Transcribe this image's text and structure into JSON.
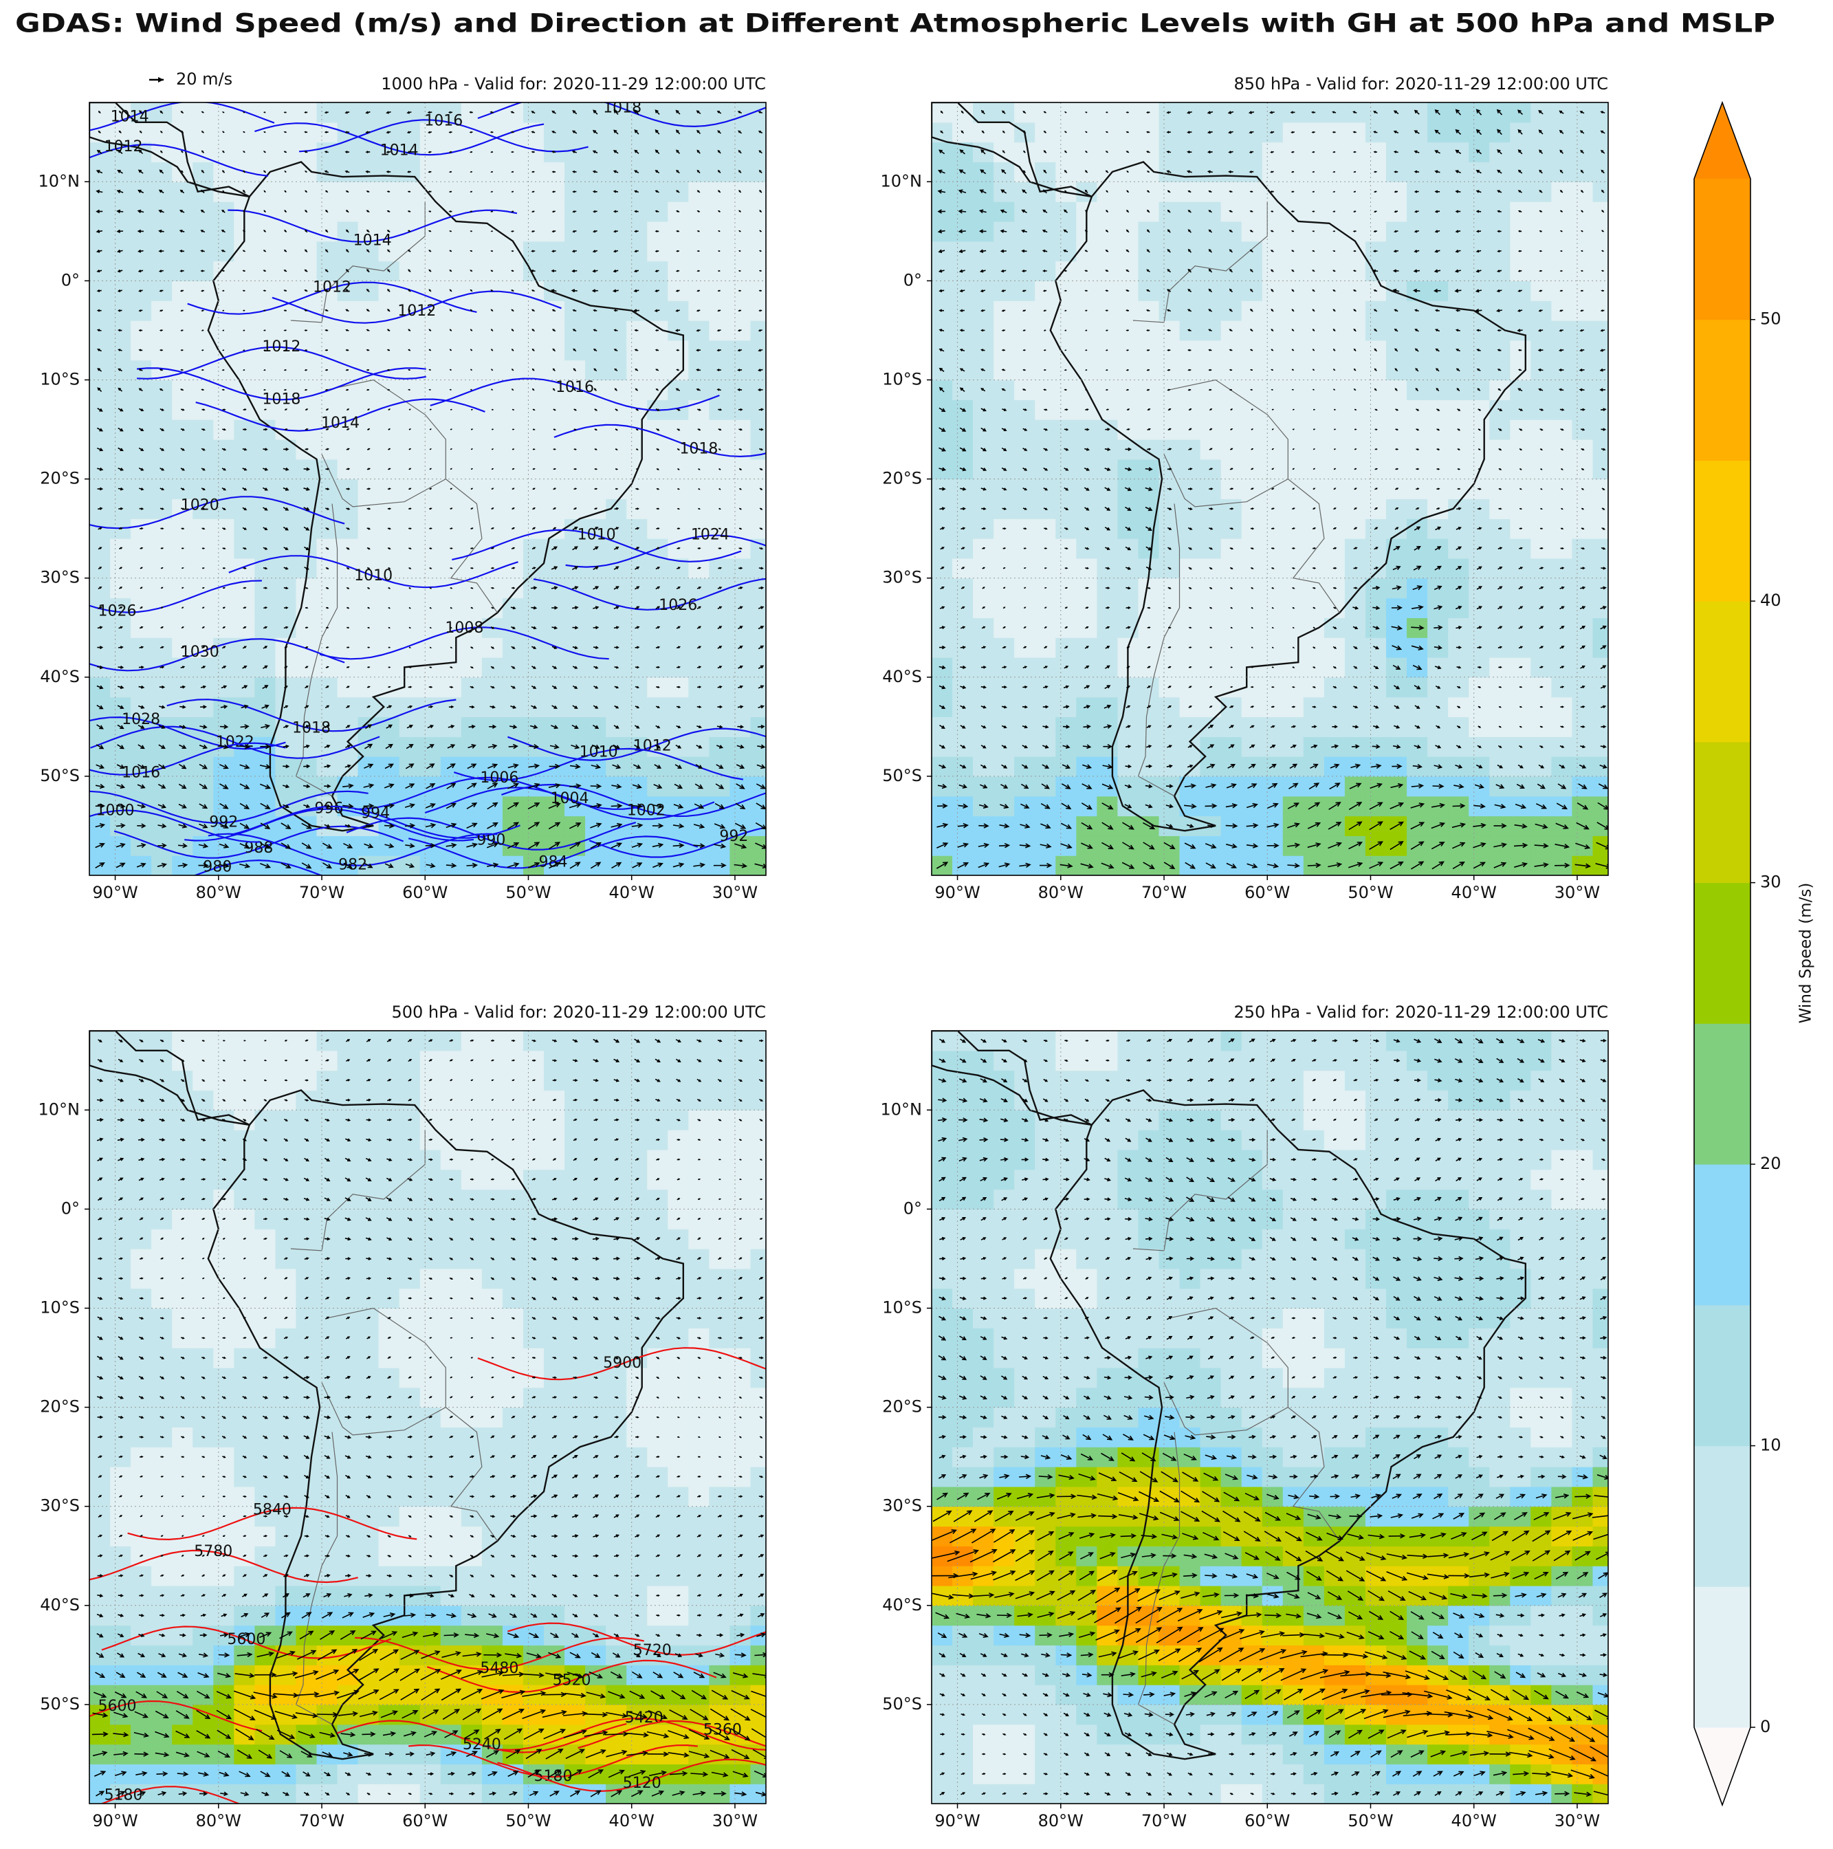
{
  "figure": {
    "title": "GDAS: Wind Speed (m/s) and Direction at Different Atmospheric Levels with GH at 500 hPa and MSLP",
    "quiver_key": "20 m/s",
    "colorbar": {
      "label": "Wind Speed (m/s)",
      "lim": [
        0,
        55
      ],
      "ticks": [
        0,
        10,
        20,
        30,
        40,
        50
      ],
      "levels": [
        0,
        5,
        10,
        15,
        20,
        25,
        30,
        35,
        40,
        45,
        50,
        55
      ],
      "colors": [
        "#e3f1f4",
        "#c5e6ec",
        "#acdee6",
        "#8dd8f8",
        "#7fcf7f",
        "#99cc00",
        "#c6cf00",
        "#e8d400",
        "#fcc800",
        "#ffb000",
        "#ff9a00"
      ],
      "extend_colors": [
        "#fcf8f8",
        "#ff8c00"
      ]
    }
  },
  "chart_data": [
    {
      "type": "map",
      "title": "1000 hPa - Valid for: 2020-11-29 12:00:00 UTC",
      "xlim": [
        -92.5,
        -27
      ],
      "ylim": [
        -60,
        18
      ],
      "xticks": [
        {
          "value": -90,
          "label": "90°W"
        },
        {
          "value": -80,
          "label": "80°W"
        },
        {
          "value": -70,
          "label": "70°W"
        },
        {
          "value": -60,
          "label": "60°W"
        },
        {
          "value": -50,
          "label": "50°W"
        },
        {
          "value": -40,
          "label": "40°W"
        },
        {
          "value": -30,
          "label": "30°W"
        }
      ],
      "yticks": [
        {
          "value": 10,
          "label": "10°N"
        },
        {
          "value": 0,
          "label": "0°"
        },
        {
          "value": -10,
          "label": "10°S"
        },
        {
          "value": -20,
          "label": "20°S"
        },
        {
          "value": -30,
          "label": "30°S"
        },
        {
          "value": -40,
          "label": "40°S"
        },
        {
          "value": -50,
          "label": "50°S"
        }
      ],
      "grid": true,
      "contour_color": "#1010ee",
      "contour_labels": [
        1014,
        1012,
        1016,
        1018,
        1014,
        1014,
        1012,
        1012,
        1012,
        1016,
        1018,
        1018,
        1014,
        1020,
        1024,
        1010,
        1010,
        1026,
        1026,
        1030,
        1008,
        1028,
        1022,
        1018,
        1016,
        1012,
        1010,
        1006,
        1004,
        1002,
        992,
        988,
        980,
        996,
        994,
        990,
        982,
        984,
        992,
        1000
      ]
    },
    {
      "type": "map",
      "title": "850 hPa - Valid for: 2020-11-29 12:00:00 UTC",
      "xlim": [
        -92.5,
        -27
      ],
      "ylim": [
        -60,
        18
      ],
      "xticks": [
        {
          "value": -90,
          "label": "90°W"
        },
        {
          "value": -80,
          "label": "80°W"
        },
        {
          "value": -70,
          "label": "70°W"
        },
        {
          "value": -60,
          "label": "60°W"
        },
        {
          "value": -50,
          "label": "50°W"
        },
        {
          "value": -40,
          "label": "40°W"
        },
        {
          "value": -30,
          "label": "30°W"
        }
      ],
      "yticks": [
        {
          "value": 10,
          "label": "10°N"
        },
        {
          "value": 0,
          "label": "0°"
        },
        {
          "value": -10,
          "label": "10°S"
        },
        {
          "value": -20,
          "label": "20°S"
        },
        {
          "value": -30,
          "label": "30°S"
        },
        {
          "value": -40,
          "label": "40°S"
        },
        {
          "value": -50,
          "label": "50°S"
        }
      ],
      "grid": true
    },
    {
      "type": "map",
      "title": "500 hPa - Valid for: 2020-11-29 12:00:00 UTC",
      "xlim": [
        -92.5,
        -27
      ],
      "ylim": [
        -60,
        18
      ],
      "xticks": [
        {
          "value": -90,
          "label": "90°W"
        },
        {
          "value": -80,
          "label": "80°W"
        },
        {
          "value": -70,
          "label": "70°W"
        },
        {
          "value": -60,
          "label": "60°W"
        },
        {
          "value": -50,
          "label": "50°W"
        },
        {
          "value": -40,
          "label": "40°W"
        },
        {
          "value": -30,
          "label": "30°W"
        }
      ],
      "yticks": [
        {
          "value": 10,
          "label": "10°N"
        },
        {
          "value": 0,
          "label": "0°"
        },
        {
          "value": -10,
          "label": "10°S"
        },
        {
          "value": -20,
          "label": "20°S"
        },
        {
          "value": -30,
          "label": "30°S"
        },
        {
          "value": -40,
          "label": "40°S"
        },
        {
          "value": -50,
          "label": "50°S"
        }
      ],
      "grid": true,
      "contour_color": "#ee1010",
      "contour_labels": [
        5900,
        5840,
        5780,
        5600,
        5720,
        5480,
        5520,
        5600,
        5420,
        5360,
        5240,
        5180,
        5120,
        5180
      ]
    },
    {
      "type": "map",
      "title": "250 hPa - Valid for: 2020-11-29 12:00:00 UTC",
      "xlim": [
        -92.5,
        -27
      ],
      "ylim": [
        -60,
        18
      ],
      "xticks": [
        {
          "value": -90,
          "label": "90°W"
        },
        {
          "value": -80,
          "label": "80°W"
        },
        {
          "value": -70,
          "label": "70°W"
        },
        {
          "value": -60,
          "label": "60°W"
        },
        {
          "value": -50,
          "label": "50°W"
        },
        {
          "value": -40,
          "label": "40°W"
        },
        {
          "value": -30,
          "label": "30°W"
        }
      ],
      "yticks": [
        {
          "value": 10,
          "label": "10°N"
        },
        {
          "value": 0,
          "label": "0°"
        },
        {
          "value": -10,
          "label": "10°S"
        },
        {
          "value": -20,
          "label": "20°S"
        },
        {
          "value": -30,
          "label": "30°S"
        },
        {
          "value": -40,
          "label": "40°S"
        },
        {
          "value": -50,
          "label": "50°S"
        }
      ],
      "grid": true
    }
  ]
}
